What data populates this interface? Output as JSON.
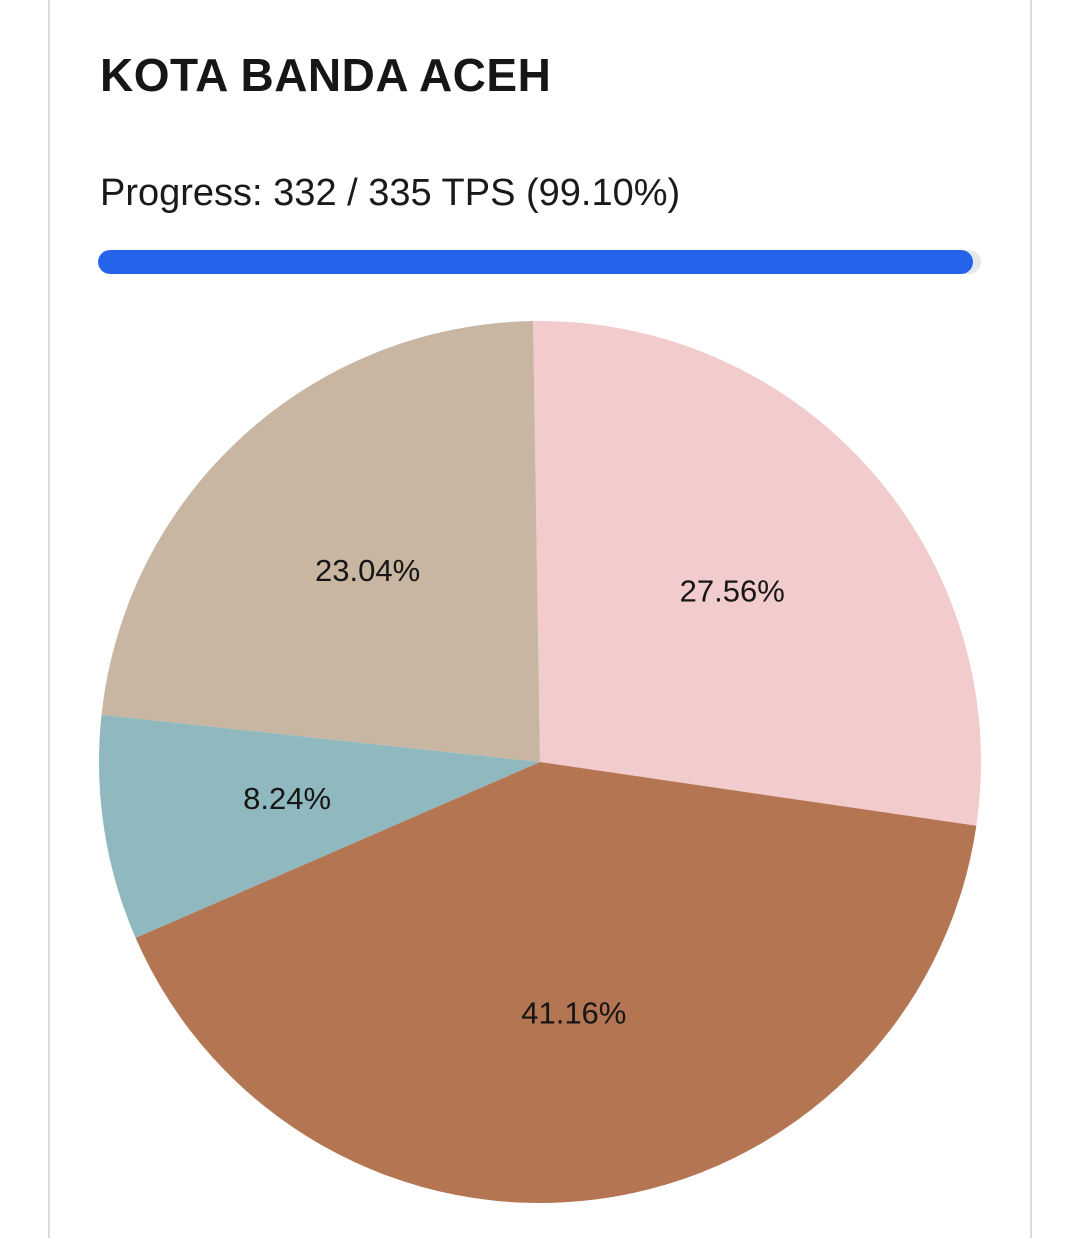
{
  "header": {
    "title": "KOTA BANDA ACEH"
  },
  "progress": {
    "text": "Progress: 332 / 335 TPS (99.10%)",
    "completed": 332,
    "total": 335,
    "percent": 99.1,
    "bar_color": "#2563eb",
    "track_color": "#e5e7eb"
  },
  "chart_data": {
    "type": "pie",
    "title": "",
    "slices": [
      {
        "value": 27.56,
        "label": "27.56%",
        "color": "#f2cbcd"
      },
      {
        "value": 41.16,
        "label": "41.16%",
        "color": "#b47552"
      },
      {
        "value": 8.24,
        "label": "8.24%",
        "color": "#8fb8bf"
      },
      {
        "value": 23.04,
        "label": "23.04%",
        "color": "#c8b6a3"
      }
    ]
  }
}
